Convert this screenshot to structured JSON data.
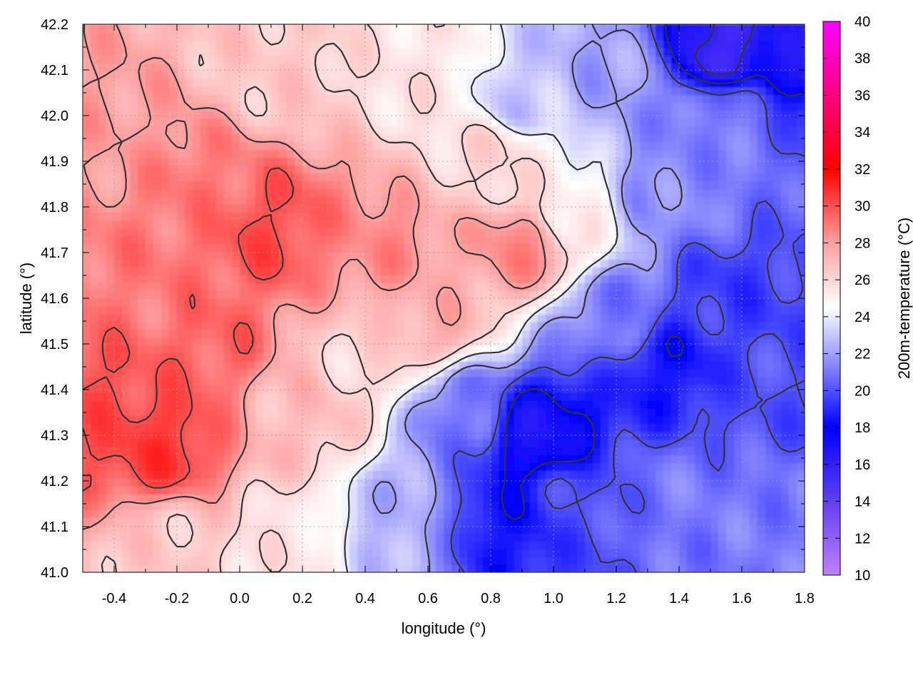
{
  "chart_data": {
    "type": "heatmap",
    "title": "",
    "xlabel": "longitude (°)",
    "ylabel": "latitude (°)",
    "colorbar_label": "200m-temperature (°C)",
    "xlim": [
      -0.5,
      1.8
    ],
    "ylim": [
      41.0,
      42.2
    ],
    "clim": [
      10,
      40
    ],
    "x_ticks": [
      -0.4,
      -0.2,
      0.0,
      0.2,
      0.4,
      0.6,
      0.8,
      1.0,
      1.2,
      1.4,
      1.6,
      1.8
    ],
    "x_tick_labels": [
      "-0.4",
      "-0.2",
      "0.0",
      "0.2",
      "0.4",
      "0.6",
      "0.8",
      "1.0",
      "1.2",
      "1.4",
      "1.6",
      "1.8"
    ],
    "y_ticks": [
      41.0,
      41.1,
      41.2,
      41.3,
      41.4,
      41.5,
      41.6,
      41.7,
      41.8,
      41.9,
      42.0,
      42.1,
      42.2
    ],
    "y_tick_labels": [
      "41.0",
      "41.1",
      "41.2",
      "41.3",
      "41.4",
      "41.5",
      "41.6",
      "41.7",
      "41.8",
      "41.9",
      "42.0",
      "42.1",
      "42.2"
    ],
    "colorbar_ticks": [
      10,
      12,
      14,
      16,
      18,
      20,
      22,
      24,
      26,
      28,
      30,
      32,
      34,
      36,
      38,
      40
    ],
    "colorbar_tick_labels": [
      "10",
      "12",
      "14",
      "16",
      "18",
      "20",
      "22",
      "24",
      "26",
      "28",
      "30",
      "32",
      "34",
      "36",
      "38",
      "40"
    ],
    "colormap": [
      {
        "value": 10,
        "color": "#c080ff"
      },
      {
        "value": 14,
        "color": "#6040f0"
      },
      {
        "value": 18,
        "color": "#0000ff"
      },
      {
        "value": 22,
        "color": "#a0a0ff"
      },
      {
        "value": 24.5,
        "color": "#ffffff"
      },
      {
        "value": 28,
        "color": "#ffa0a0"
      },
      {
        "value": 32,
        "color": "#ff0000"
      },
      {
        "value": 36,
        "color": "#ff0080"
      },
      {
        "value": 40,
        "color": "#ff00ff"
      }
    ],
    "grid": true,
    "contour_color": "#333333",
    "field_samples": [
      {
        "lon": -0.25,
        "lat": 41.28,
        "temp": 30.5
      },
      {
        "lon": -0.45,
        "lat": 41.4,
        "temp": 30.0
      },
      {
        "lon": -0.3,
        "lat": 41.6,
        "temp": 29.0
      },
      {
        "lon": -0.1,
        "lat": 41.5,
        "temp": 29.5
      },
      {
        "lon": 0.1,
        "lat": 41.75,
        "temp": 30.0
      },
      {
        "lon": 0.45,
        "lat": 41.72,
        "temp": 28.5
      },
      {
        "lon": 0.9,
        "lat": 41.72,
        "temp": 28.5
      },
      {
        "lon": -0.15,
        "lat": 41.85,
        "temp": 29.0
      },
      {
        "lon": -0.4,
        "lat": 41.95,
        "temp": 28.0
      },
      {
        "lon": 0.1,
        "lat": 42.1,
        "temp": 26.5
      },
      {
        "lon": 0.6,
        "lat": 42.1,
        "temp": 25.5
      },
      {
        "lon": 0.9,
        "lat": 42.05,
        "temp": 23.0
      },
      {
        "lon": 0.2,
        "lat": 41.35,
        "temp": 27.0
      },
      {
        "lon": 0.4,
        "lat": 41.45,
        "temp": 26.0
      },
      {
        "lon": -0.2,
        "lat": 41.05,
        "temp": 26.5
      },
      {
        "lon": 0.15,
        "lat": 41.05,
        "temp": 25.5
      },
      {
        "lon": 0.5,
        "lat": 41.1,
        "temp": 22.5
      },
      {
        "lon": 0.7,
        "lat": 41.35,
        "temp": 21.0
      },
      {
        "lon": 0.95,
        "lat": 41.3,
        "temp": 17.0
      },
      {
        "lon": 0.85,
        "lat": 41.1,
        "temp": 18.5
      },
      {
        "lon": 1.1,
        "lat": 41.15,
        "temp": 20.0
      },
      {
        "lon": 1.2,
        "lat": 41.55,
        "temp": 21.0
      },
      {
        "lon": 1.35,
        "lat": 41.45,
        "temp": 18.5
      },
      {
        "lon": 1.55,
        "lat": 41.6,
        "temp": 19.5
      },
      {
        "lon": 1.7,
        "lat": 41.4,
        "temp": 20.0
      },
      {
        "lon": 1.7,
        "lat": 41.1,
        "temp": 21.0
      },
      {
        "lon": 1.4,
        "lat": 41.15,
        "temp": 21.0
      },
      {
        "lon": 1.35,
        "lat": 41.85,
        "temp": 21.5
      },
      {
        "lon": 1.55,
        "lat": 42.0,
        "temp": 21.0
      },
      {
        "lon": 1.55,
        "lat": 42.15,
        "temp": 15.5
      },
      {
        "lon": 1.75,
        "lat": 42.15,
        "temp": 17.0
      },
      {
        "lon": 1.2,
        "lat": 42.1,
        "temp": 22.0
      },
      {
        "lon": 1.05,
        "lat": 41.8,
        "temp": 25.0
      },
      {
        "lon": 0.6,
        "lat": 41.55,
        "temp": 27.5
      },
      {
        "lon": 0.8,
        "lat": 41.9,
        "temp": 26.0
      }
    ]
  }
}
